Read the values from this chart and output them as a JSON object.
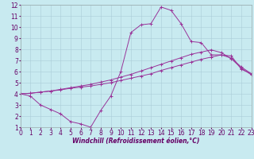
{
  "bg_color": "#c8eaf0",
  "grid_color": "#aaccd8",
  "line_color": "#993399",
  "x_min": 0,
  "x_max": 23,
  "y_min": 1,
  "y_max": 12,
  "xlabel": "Windchill (Refroidissement éolien,°C)",
  "line1_x": [
    0,
    1,
    2,
    3,
    4,
    5,
    6,
    7,
    8,
    9,
    10,
    11,
    12,
    13,
    14,
    15,
    16,
    17,
    18,
    19,
    20,
    21,
    22,
    23
  ],
  "line1_y": [
    4.0,
    3.8,
    3.0,
    2.6,
    2.2,
    1.5,
    1.3,
    1.0,
    2.5,
    3.8,
    6.0,
    9.5,
    10.2,
    10.3,
    11.8,
    11.5,
    10.3,
    8.7,
    8.6,
    7.5,
    7.5,
    7.4,
    6.2,
    5.8
  ],
  "line2_x": [
    0,
    1,
    2,
    3,
    4,
    5,
    6,
    7,
    8,
    9,
    10,
    11,
    12,
    13,
    14,
    15,
    16,
    17,
    18,
    19,
    20,
    21,
    22,
    23
  ],
  "line2_y": [
    4.0,
    4.05,
    4.15,
    4.25,
    4.35,
    4.5,
    4.6,
    4.7,
    4.85,
    5.0,
    5.2,
    5.4,
    5.6,
    5.8,
    6.1,
    6.35,
    6.6,
    6.85,
    7.1,
    7.3,
    7.5,
    7.2,
    6.4,
    5.8
  ],
  "line3_x": [
    0,
    1,
    2,
    3,
    4,
    5,
    6,
    7,
    8,
    9,
    10,
    11,
    12,
    13,
    14,
    15,
    16,
    17,
    18,
    19,
    20,
    21,
    22,
    23
  ],
  "line3_y": [
    4.0,
    4.05,
    4.15,
    4.25,
    4.4,
    4.55,
    4.7,
    4.85,
    5.05,
    5.25,
    5.5,
    5.75,
    6.05,
    6.35,
    6.65,
    6.95,
    7.25,
    7.55,
    7.75,
    7.95,
    7.7,
    7.15,
    6.3,
    5.7
  ],
  "tick_fontsize": 5.5,
  "xlabel_fontsize": 5.5
}
